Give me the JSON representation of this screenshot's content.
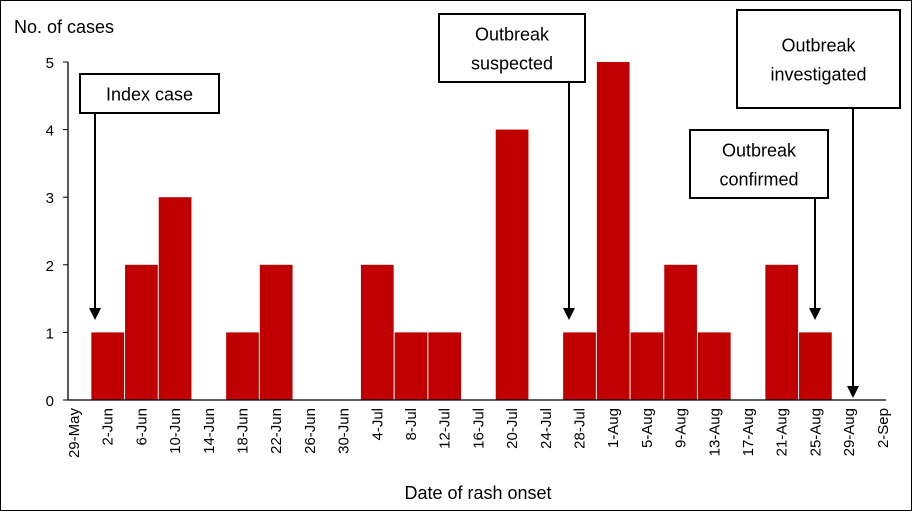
{
  "chart_data": {
    "type": "bar",
    "title": "",
    "xlabel": "Date of rash onset",
    "ylabel": "No. of cases",
    "ylim": [
      0,
      5
    ],
    "yticks": [
      0,
      1,
      2,
      3,
      4,
      5
    ],
    "grid": false,
    "bar_color": "#C00000",
    "categories": [
      "29-May",
      "2-Jun",
      "6-Jun",
      "10-Jun",
      "14-Jun",
      "18-Jun",
      "22-Jun",
      "26-Jun",
      "30-Jun",
      "4-Jul",
      "8-Jul",
      "12-Jul",
      "16-Jul",
      "20-Jul",
      "24-Jul",
      "28-Jul",
      "1-Aug",
      "5-Aug",
      "9-Aug",
      "13-Aug",
      "17-Aug",
      "21-Aug",
      "25-Aug",
      "29-Aug",
      "2-Sep"
    ],
    "values": [
      0,
      1,
      2,
      3,
      0,
      1,
      2,
      0,
      0,
      2,
      1,
      1,
      0,
      4,
      0,
      1,
      5,
      1,
      2,
      1,
      0,
      2,
      1,
      0,
      0
    ],
    "annotations": [
      {
        "lines": [
          "Index case"
        ],
        "category": "2-Jun"
      },
      {
        "lines": [
          "Outbreak",
          "suspected"
        ],
        "category": "28-Jul"
      },
      {
        "lines": [
          "Outbreak",
          "confirmed"
        ],
        "category": "25-Aug"
      },
      {
        "lines": [
          "Outbreak",
          "investigated"
        ],
        "category": "29-Aug"
      }
    ]
  }
}
